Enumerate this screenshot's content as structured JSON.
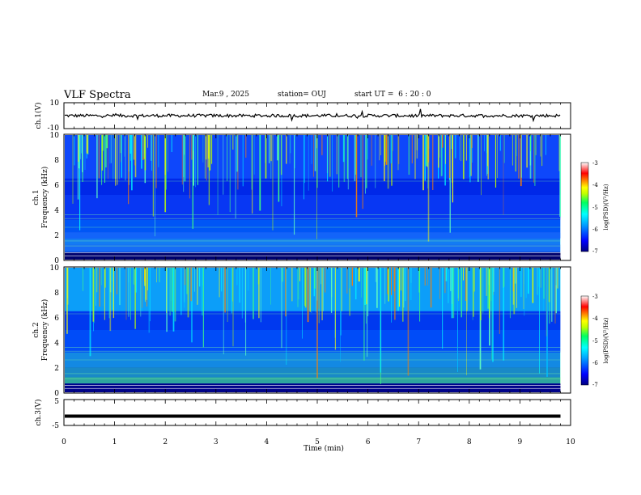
{
  "header": {
    "title": "VLF Spectra",
    "date": "Mar.9 , 2025",
    "station": "station= OUJ",
    "start_ut": "start UT =  6 : 20 : 0"
  },
  "chart_data": [
    {
      "type": "line",
      "panel": "ch1-waveform",
      "ylabel": "ch.1(V)",
      "ylim": [
        -10,
        10
      ],
      "yticks": [
        "10",
        "-10"
      ],
      "xlim": [
        0,
        10
      ],
      "series": [
        {
          "baseline": 0,
          "color": "#000000"
        }
      ]
    },
    {
      "type": "heatmap",
      "panel": "ch1-spectrogram",
      "ylabel": "ch.1\nFrequency (kHz)",
      "ylim": [
        0,
        10
      ],
      "yticks": [
        "0",
        "2",
        "4",
        "6",
        "8",
        "10"
      ],
      "xlim": [
        0,
        10
      ],
      "data_xmax": 9.8,
      "colorbar": {
        "label": "log(PSD)(V²/Hz)",
        "range": [
          -7,
          -3
        ],
        "ticks": [
          "-3",
          "-4",
          "-5",
          "-6",
          "-7"
        ]
      }
    },
    {
      "type": "heatmap",
      "panel": "ch2-spectrogram",
      "ylabel": "ch.2\nFrequency (kHz)",
      "ylim": [
        0,
        10
      ],
      "yticks": [
        "0",
        "2",
        "4",
        "6",
        "8",
        "10"
      ],
      "xlim": [
        0,
        10
      ],
      "data_xmax": 9.8,
      "colorbar": {
        "label": "log(PSD)(V²/Hz)",
        "range": [
          -7,
          -3
        ],
        "ticks": [
          "-3",
          "-4",
          "-5",
          "-6",
          "-7"
        ]
      }
    },
    {
      "type": "line",
      "panel": "ch3-waveform",
      "ylabel": "ch.3(V)",
      "ylim": [
        -5,
        5
      ],
      "yticks": [
        "5",
        "-5"
      ],
      "xlim": [
        0,
        10
      ],
      "series": [
        {
          "baseline": -1.4,
          "color": "#000000"
        }
      ]
    }
  ],
  "xaxis": {
    "label": "Time (min)",
    "ticks": [
      "0",
      "1",
      "2",
      "3",
      "4",
      "5",
      "6",
      "7",
      "8",
      "9",
      "10"
    ]
  },
  "colors": {
    "colormap": [
      "#000080",
      "#0000ff",
      "#00a0ff",
      "#00ffff",
      "#00ff60",
      "#c0ff00",
      "#ffff00",
      "#ff8000",
      "#ff0000",
      "#ffffff"
    ]
  }
}
